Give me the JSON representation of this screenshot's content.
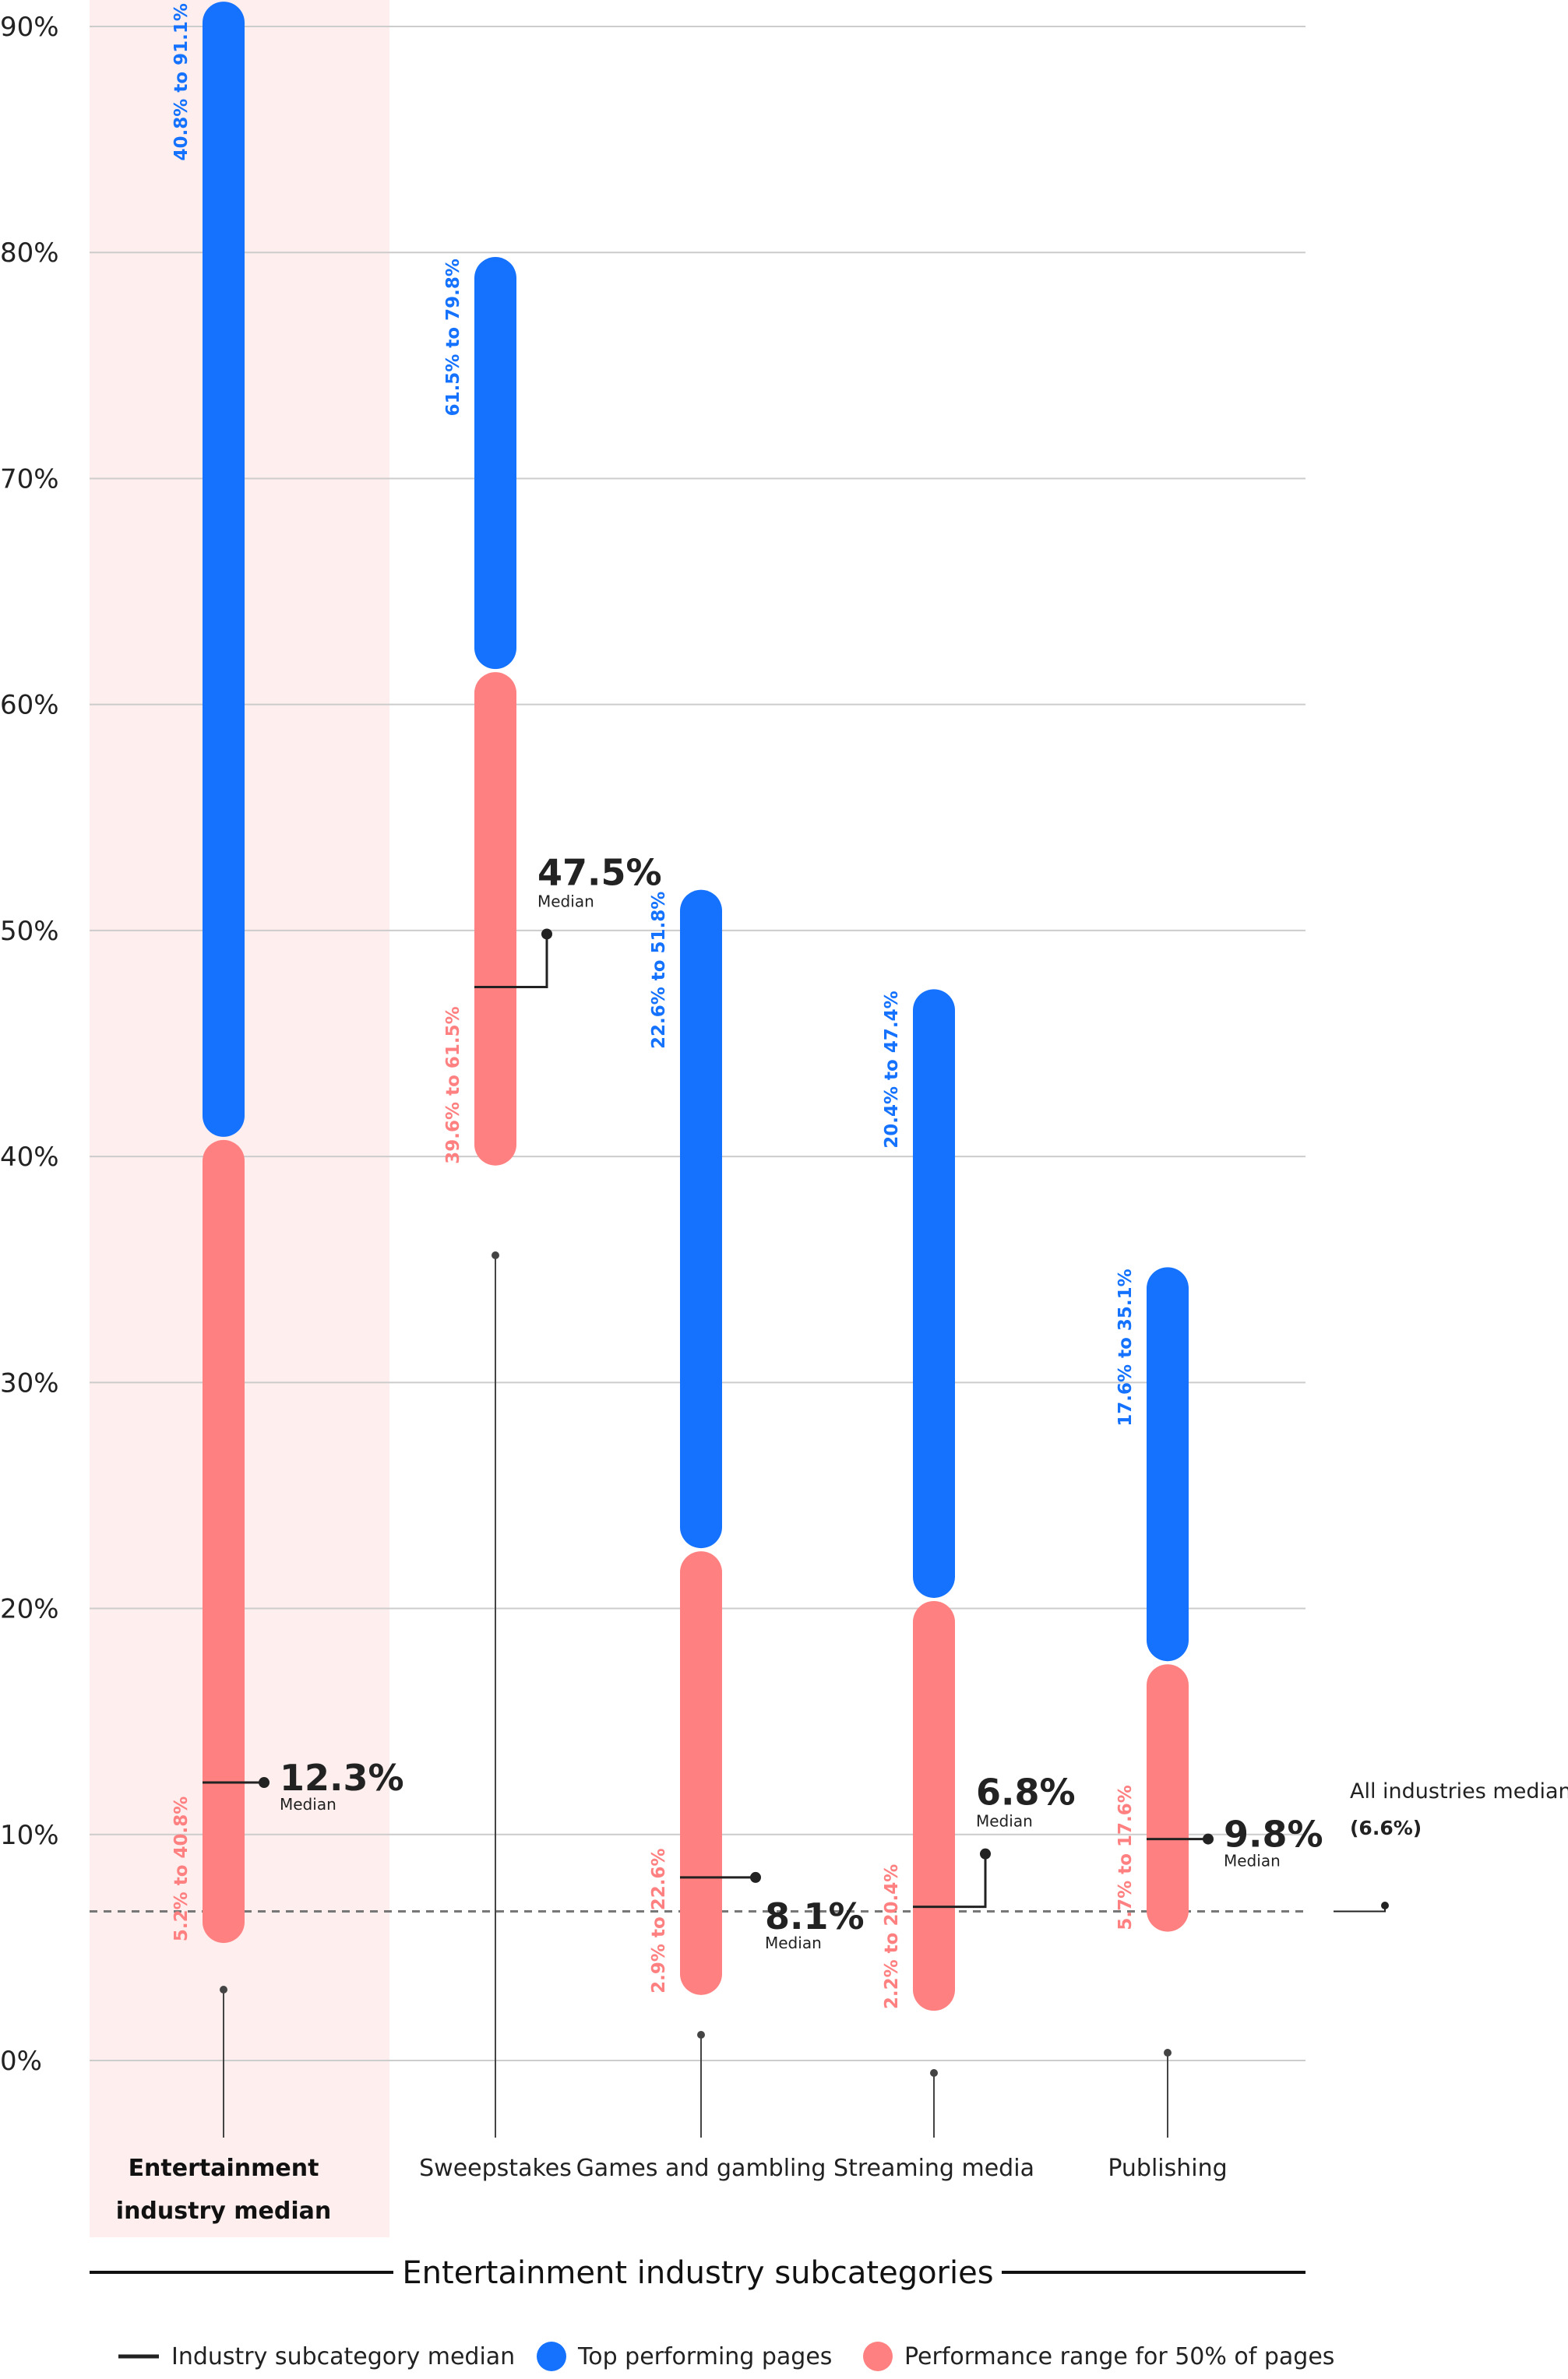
{
  "chart_data": {
    "type": "range-bar",
    "y_ticks": [
      "0%",
      "10%",
      "20%",
      "30%",
      "40%",
      "50%",
      "60%",
      "70%",
      "80%",
      "90%"
    ],
    "ylim": [
      0,
      90
    ],
    "grid": true,
    "xlabel": "Entertainment industry subcategories",
    "categories": [
      {
        "name_lines": [
          "Entertainment",
          "industry median"
        ],
        "highlight": true,
        "range50": [
          5.2,
          40.8
        ],
        "range50_label": "5.2% to 40.8%",
        "top": [
          40.8,
          91.1
        ],
        "top_label": "40.8% to 91.1%",
        "median": 12.3,
        "median_label": "12.3%",
        "median_word": "Median",
        "callout_dir": "right"
      },
      {
        "name_lines": [
          "Sweepstakes"
        ],
        "highlight": false,
        "range50": [
          39.6,
          61.5
        ],
        "range50_label": "39.6% to 61.5%",
        "top": [
          61.5,
          79.8
        ],
        "top_label": "61.5% to 79.8%",
        "median": 47.5,
        "median_label": "47.5%",
        "median_word": "Median",
        "callout_dir": "up"
      },
      {
        "name_lines": [
          "Games and gambling"
        ],
        "highlight": false,
        "range50": [
          2.9,
          22.6
        ],
        "range50_label": "2.9% to 22.6%",
        "top": [
          22.6,
          51.8
        ],
        "top_label": "22.6% to 51.8%",
        "median": 8.1,
        "median_label": "8.1%",
        "median_word": "Median",
        "callout_dir": "right-down"
      },
      {
        "name_lines": [
          "Streaming media"
        ],
        "highlight": false,
        "range50": [
          2.2,
          20.4
        ],
        "range50_label": "2.2% to 20.4%",
        "top": [
          20.4,
          47.4
        ],
        "top_label": "20.4% to 47.4%",
        "median": 6.8,
        "median_label": "6.8%",
        "median_word": "Median",
        "callout_dir": "up"
      },
      {
        "name_lines": [
          "Publishing"
        ],
        "highlight": false,
        "range50": [
          5.7,
          17.6
        ],
        "range50_label": "5.7% to 17.6%",
        "top": [
          17.6,
          35.1
        ],
        "top_label": "17.6% to 35.1%",
        "median": 9.8,
        "median_label": "9.8%",
        "median_word": "Median",
        "callout_dir": "right"
      }
    ],
    "all_industries_median": {
      "value": 6.6,
      "label": "All industries median",
      "value_label": "(6.6%)"
    },
    "legend": [
      {
        "kind": "line",
        "label": "Industry subcategory median"
      },
      {
        "kind": "dot-blue",
        "label": "Top performing pages"
      },
      {
        "kind": "dot-red",
        "label": "Performance range for 50% of pages"
      }
    ],
    "colors": {
      "top": "#1472FF",
      "range50": "#FF8080",
      "highlight_bg": "#FFEEEE",
      "grid": "#CCCCCC",
      "median_line": "#222222",
      "all_median_line": "#777777"
    }
  }
}
